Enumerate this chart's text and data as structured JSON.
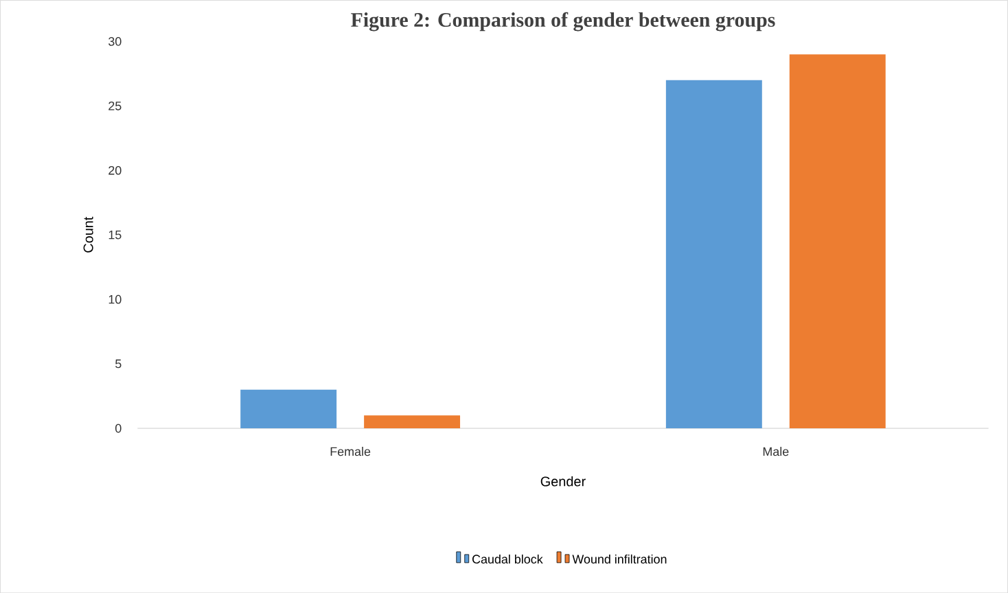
{
  "chart_data": {
    "type": "bar",
    "title": "Figure 2: Comparison of gender between groups",
    "xlabel": "Gender",
    "ylabel": "Count",
    "categories": [
      "Female",
      "Male"
    ],
    "series": [
      {
        "name": "Caudal block",
        "color": "#5b9bd5",
        "values": [
          3,
          27
        ]
      },
      {
        "name": "Wound infiltration",
        "color": "#ed7d31",
        "values": [
          1,
          29
        ]
      }
    ],
    "ylim": [
      0,
      30
    ],
    "yticks": [
      0,
      5,
      10,
      15,
      20,
      25,
      30
    ],
    "grid": false,
    "legend": "bottom"
  }
}
